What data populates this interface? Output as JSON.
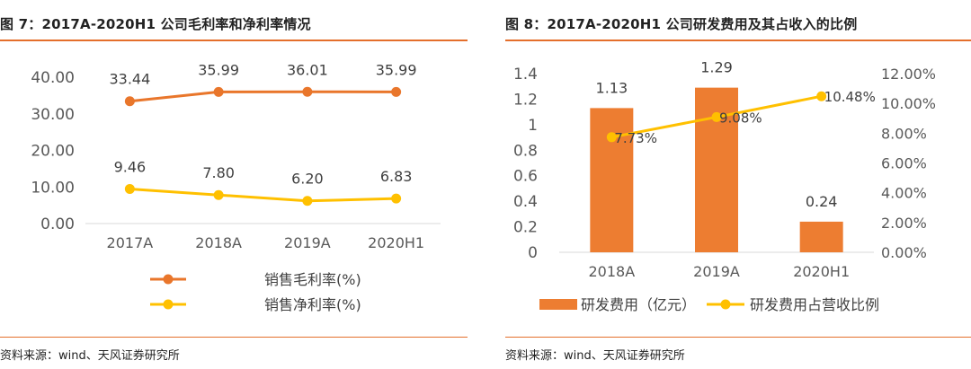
{
  "chart_data": [
    {
      "type": "line",
      "title": "图 7：2017A-2020H1 公司毛利率和净利率情况",
      "categories": [
        "2017A",
        "2018A",
        "2019A",
        "2020H1"
      ],
      "ylim": [
        0,
        40
      ],
      "yticks": [
        "0.00",
        "10.00",
        "20.00",
        "30.00",
        "40.00"
      ],
      "grid": false,
      "legend_position": "bottom",
      "series": [
        {
          "name": "销售毛利率(%)",
          "color": "#e9762b",
          "values": [
            33.44,
            35.99,
            36.01,
            35.99
          ],
          "labels": [
            "33.44",
            "35.99",
            "36.01",
            "35.99"
          ]
        },
        {
          "name": "销售净利率(%)",
          "color": "#ffc000",
          "values": [
            9.46,
            7.8,
            6.2,
            6.83
          ],
          "labels": [
            "9.46",
            "7.80",
            "6.20",
            "6.83"
          ]
        }
      ],
      "source": "资料来源：wind、天风证券研究所"
    },
    {
      "type": "bar",
      "title": "图 8：2017A-2020H1 公司研发费用及其占收入的比例",
      "categories": [
        "2018A",
        "2019A",
        "2020H1"
      ],
      "ylim": [
        0,
        1.4
      ],
      "yticks": [
        "0",
        "0.2",
        "0.4",
        "0.6",
        "0.8",
        "1",
        "1.2",
        "1.4"
      ],
      "y2lim": [
        0,
        12
      ],
      "y2ticks": [
        "0.00%",
        "2.00%",
        "4.00%",
        "6.00%",
        "8.00%",
        "10.00%",
        "12.00%"
      ],
      "grid": false,
      "legend_position": "bottom",
      "series": [
        {
          "name": "研发费用（亿元）",
          "type": "bar",
          "axis": "left",
          "color": "#ed7d31",
          "values": [
            1.13,
            1.29,
            0.24
          ],
          "labels": [
            "1.13",
            "1.29",
            "0.24"
          ]
        },
        {
          "name": "研发费用占营收比例",
          "type": "line",
          "axis": "right",
          "color": "#ffc000",
          "values": [
            7.73,
            9.08,
            10.48
          ],
          "labels": [
            "7.73%",
            "9.08%",
            "10.48%"
          ]
        }
      ],
      "source": "资料来源：wind、天风证券研究所"
    }
  ]
}
